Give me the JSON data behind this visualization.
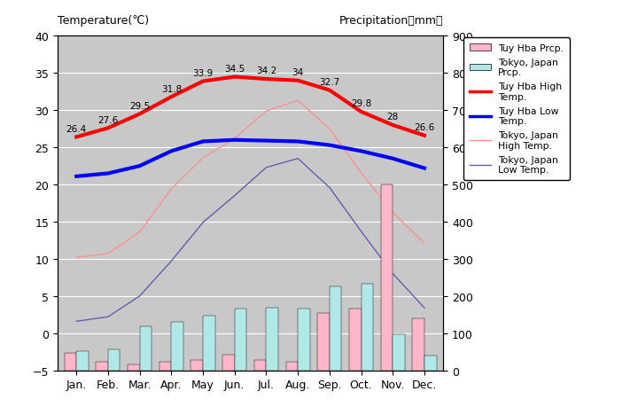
{
  "months": [
    "Jan.",
    "Feb.",
    "Mar.",
    "Apr.",
    "May",
    "Jun.",
    "Jul.",
    "Aug.",
    "Sep.",
    "Oct.",
    "Nov.",
    "Dec."
  ],
  "tuy_hba_high": [
    26.4,
    27.6,
    29.5,
    31.8,
    33.9,
    34.5,
    34.2,
    34.0,
    32.7,
    29.8,
    28.0,
    26.6
  ],
  "tuy_hba_low": [
    21.1,
    21.5,
    22.5,
    24.5,
    25.8,
    26.0,
    25.9,
    25.8,
    25.3,
    24.5,
    23.5,
    22.2
  ],
  "tokyo_high": [
    10.2,
    10.7,
    13.6,
    19.4,
    23.6,
    26.2,
    29.9,
    31.3,
    27.5,
    21.6,
    16.2,
    12.1
  ],
  "tokyo_low": [
    1.6,
    2.2,
    5.0,
    9.7,
    14.9,
    18.5,
    22.3,
    23.5,
    19.6,
    13.7,
    8.0,
    3.4
  ],
  "tuy_hba_prcp_mm": [
    46,
    22,
    15,
    24,
    28,
    42,
    28,
    24,
    155,
    165,
    500,
    140
  ],
  "tokyo_prcp_mm": [
    52,
    56,
    118,
    130,
    147,
    167,
    168,
    165,
    226,
    234,
    96,
    40
  ],
  "labels_high": [
    "26.4",
    "27.6",
    "29.5",
    "31.8",
    "33.9",
    "34.5",
    "34.2",
    "34",
    "32.7",
    "29.8",
    "28",
    "26.6"
  ],
  "bg_color": "#c8c8c8",
  "tuy_hba_high_color": "#ff0000",
  "tuy_hba_low_color": "#0000ff",
  "tokyo_high_color": "#ff9090",
  "tokyo_low_color": "#6060b0",
  "tuy_hba_bar_color": "#ffb6c8",
  "tokyo_bar_color": "#b0e8e8",
  "title_left": "Temperature(℃)",
  "title_right": "Precipitation（mm）",
  "ylim_left": [
    -5,
    40
  ],
  "ylim_right": [
    0,
    900
  ],
  "yticks_left": [
    -5,
    0,
    5,
    10,
    15,
    20,
    25,
    30,
    35,
    40
  ],
  "yticks_right": [
    0,
    100,
    200,
    300,
    400,
    500,
    600,
    700,
    800,
    900
  ]
}
